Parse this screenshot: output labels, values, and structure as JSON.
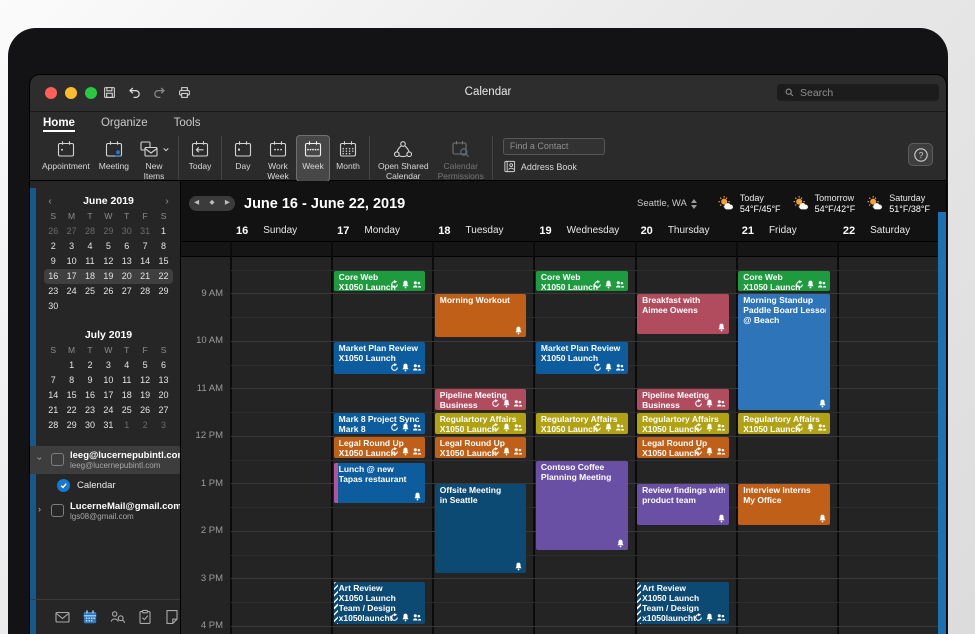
{
  "window": {
    "title": "Calendar",
    "search_placeholder": "Search",
    "traffic_lights": [
      {
        "name": "close",
        "color": "#ff5f57"
      },
      {
        "name": "minimize",
        "color": "#febc2e"
      },
      {
        "name": "zoom",
        "color": "#28c840"
      }
    ],
    "titlebar_icons": [
      "save",
      "undo",
      "redo",
      "print"
    ]
  },
  "ribbon": {
    "tabs": [
      {
        "label": "Home",
        "active": true
      },
      {
        "label": "Organize",
        "active": false
      },
      {
        "label": "Tools",
        "active": false
      }
    ],
    "groups": [
      {
        "items": [
          {
            "lines": [
              "Appointment"
            ],
            "icon": "appointment"
          },
          {
            "lines": [
              "Meeting"
            ],
            "icon": "meeting"
          },
          {
            "lines": [
              "New",
              "Items"
            ],
            "icon": "new-items",
            "chevron": true
          }
        ]
      },
      {
        "items": [
          {
            "lines": [
              "Today"
            ],
            "icon": "today"
          }
        ]
      },
      {
        "items": [
          {
            "lines": [
              "Day"
            ],
            "icon": "day"
          },
          {
            "lines": [
              "Work",
              "Week"
            ],
            "icon": "work-week"
          },
          {
            "lines": [
              "Week"
            ],
            "icon": "week",
            "selected": true
          },
          {
            "lines": [
              "Month"
            ],
            "icon": "month"
          }
        ]
      },
      {
        "items": [
          {
            "lines": [
              "Open Shared",
              "Calendar"
            ],
            "icon": "shared-calendar"
          },
          {
            "lines": [
              "Calendar",
              "Permissions"
            ],
            "icon": "permissions",
            "disabled": true
          }
        ]
      }
    ],
    "find_contact_placeholder": "Find a Contact",
    "address_book_label": "Address Book"
  },
  "sidebar": {
    "mini_calendars": [
      {
        "title": "June 2019",
        "arrows": true,
        "dow": [
          "S",
          "M",
          "T",
          "W",
          "T",
          "F",
          "S"
        ],
        "rows": [
          [
            "26",
            "27",
            "28",
            "29",
            "30",
            "31",
            "1"
          ],
          [
            "2",
            "3",
            "4",
            "5",
            "6",
            "7",
            "8"
          ],
          [
            "9",
            "10",
            "11",
            "12",
            "13",
            "14",
            "15"
          ],
          [
            "16",
            "17",
            "18",
            "19",
            "20",
            "21",
            "22"
          ],
          [
            "23",
            "24",
            "25",
            "26",
            "27",
            "28",
            "29"
          ],
          [
            "30",
            "",
            "",
            "",
            "",
            "",
            ""
          ]
        ],
        "muted": [
          "0-0",
          "0-1",
          "0-2",
          "0-3",
          "0-4",
          "0-5"
        ],
        "selected_row": 3
      },
      {
        "title": "July 2019",
        "arrows": false,
        "dow": [
          "S",
          "M",
          "T",
          "W",
          "T",
          "F",
          "S"
        ],
        "rows": [
          [
            "",
            "1",
            "2",
            "3",
            "4",
            "5",
            "6"
          ],
          [
            "7",
            "8",
            "9",
            "10",
            "11",
            "12",
            "13"
          ],
          [
            "14",
            "15",
            "16",
            "17",
            "18",
            "19",
            "20"
          ],
          [
            "21",
            "22",
            "23",
            "24",
            "25",
            "26",
            "27"
          ],
          [
            "28",
            "29",
            "30",
            "31",
            "1",
            "2",
            "3"
          ]
        ],
        "muted": [
          "4-4",
          "4-5",
          "4-6"
        ],
        "selected_row": -1
      }
    ],
    "accounts": [
      {
        "title": "leeg@lucernepubintl.com",
        "subtitle": "leeg@lucernepubintl.com",
        "expanded": true,
        "highlighted": true,
        "children": [
          {
            "label": "Calendar",
            "checked": true
          }
        ]
      },
      {
        "title": "LucerneMail@gmail.com",
        "subtitle": "lgs08@gmail.com",
        "expanded": false,
        "highlighted": false,
        "children": []
      }
    ],
    "nav_icons": [
      {
        "name": "mail",
        "active": false
      },
      {
        "name": "calendar",
        "active": true
      },
      {
        "name": "people",
        "active": false
      },
      {
        "name": "tasks",
        "active": false
      },
      {
        "name": "notes",
        "active": false
      }
    ]
  },
  "calendar": {
    "range_label": "June 16 - June 22, 2019",
    "location": "Seattle, WA",
    "weather": [
      {
        "label": "Today",
        "temps": "54°F/45°F"
      },
      {
        "label": "Tomorrow",
        "temps": "54°F/42°F"
      },
      {
        "label": "Saturday",
        "temps": "51°F/38°F"
      }
    ],
    "days": [
      {
        "num": "16",
        "name": "Sunday"
      },
      {
        "num": "17",
        "name": "Monday"
      },
      {
        "num": "18",
        "name": "Tuesday"
      },
      {
        "num": "19",
        "name": "Wednesday"
      },
      {
        "num": "20",
        "name": "Thursday"
      },
      {
        "num": "21",
        "name": "Friday"
      },
      {
        "num": "22",
        "name": "Saturday"
      }
    ],
    "time_labels": [
      "9 AM",
      "10 AM",
      "11 AM",
      "12 PM",
      "1 PM",
      "2 PM",
      "3 PM",
      "4 PM"
    ],
    "event_colors": {
      "green": "#1e9b3f",
      "blue": "#0d5c9e",
      "lightblue": "#2e74b9",
      "orange": "#c05f17",
      "rose": "#b04c5e",
      "olive": "#b0a213",
      "purple": "#6a50a5",
      "navy": "#0d4a73"
    },
    "events": [
      {
        "day": 1,
        "start": 8.5,
        "end": 9.0,
        "color": "green",
        "lines": [
          "Core Web",
          "X1050 Launch"
        ],
        "icons": [
          "recurrence",
          "bell",
          "attendees"
        ]
      },
      {
        "day": 1,
        "start": 10.0,
        "end": 10.75,
        "color": "blue",
        "lines": [
          "Market Plan Review",
          "X1050 Launch"
        ],
        "icons": [
          "recurrence",
          "bell",
          "attendees"
        ]
      },
      {
        "day": 1,
        "start": 11.5,
        "end": 12.0,
        "color": "blue",
        "lines": [
          "Mark 8 Project Sync",
          "Mark 8"
        ],
        "icons": [
          "recurrence",
          "bell",
          "attendees"
        ]
      },
      {
        "day": 1,
        "start": 12.0,
        "end": 12.5,
        "color": "orange",
        "lines": [
          "Legal Round Up",
          "X1050 Launch"
        ],
        "icons": [
          "recurrence",
          "bell",
          "attendees"
        ]
      },
      {
        "day": 1,
        "start": 12.55,
        "end": 13.45,
        "color": "blue",
        "stripe": "#b2539f",
        "lines": [
          "Lunch @ new",
          "Tapas restaurant"
        ],
        "icons": [
          "bell"
        ]
      },
      {
        "day": 1,
        "start": 15.05,
        "end": 16.0,
        "color": "navy",
        "stripe": "hatch",
        "lines": [
          "Art Review",
          "X1050 Launch",
          "Team / Design",
          "x1050launcht"
        ],
        "icons": [
          "recurrence",
          "bell",
          "attendees"
        ]
      },
      {
        "day": 2,
        "start": 9.0,
        "end": 9.97,
        "color": "orange",
        "lines": [
          "Morning Workout"
        ],
        "icons": [
          "bell"
        ]
      },
      {
        "day": 2,
        "start": 11.0,
        "end": 11.5,
        "color": "rose",
        "lines": [
          "Pipeline Meeting",
          "Business"
        ],
        "icons": [
          "recurrence",
          "bell",
          "attendees"
        ]
      },
      {
        "day": 2,
        "start": 11.5,
        "end": 12.0,
        "color": "olive",
        "lines": [
          "Regulartory Affairs",
          "X1050 Launch"
        ],
        "icons": [
          "recurrence",
          "bell",
          "attendees"
        ]
      },
      {
        "day": 2,
        "start": 12.0,
        "end": 12.5,
        "color": "orange",
        "lines": [
          "Legal Round Up",
          "X1050 Launch"
        ],
        "icons": [
          "recurrence",
          "bell",
          "attendees"
        ]
      },
      {
        "day": 2,
        "start": 13.0,
        "end": 14.93,
        "color": "navy",
        "lines": [
          "Offsite Meeting",
          "in Seattle"
        ],
        "icons": [
          "bell"
        ]
      },
      {
        "day": 3,
        "start": 8.5,
        "end": 9.0,
        "color": "green",
        "lines": [
          "Core Web",
          "X1050 Launch"
        ],
        "icons": [
          "recurrence",
          "bell",
          "attendees"
        ]
      },
      {
        "day": 3,
        "start": 10.0,
        "end": 10.75,
        "color": "blue",
        "lines": [
          "Market Plan Review",
          "X1050 Launch"
        ],
        "icons": [
          "recurrence",
          "bell",
          "attendees"
        ]
      },
      {
        "day": 3,
        "start": 11.5,
        "end": 12.0,
        "color": "olive",
        "lines": [
          "Regulartory Affairs",
          "X1050 Launch"
        ],
        "icons": [
          "recurrence",
          "bell",
          "attendees"
        ]
      },
      {
        "day": 3,
        "start": 12.5,
        "end": 14.45,
        "color": "purple",
        "lines": [
          "Contoso Coffee",
          "Planning Meeting"
        ],
        "icons": [
          "bell"
        ]
      },
      {
        "day": 4,
        "start": 9.0,
        "end": 9.9,
        "color": "rose",
        "lines": [
          "Breakfast with",
          "Aimee Owens"
        ],
        "icons": [
          "bell"
        ]
      },
      {
        "day": 4,
        "start": 11.0,
        "end": 11.5,
        "color": "rose",
        "lines": [
          "Pipeline Meeting",
          "Business"
        ],
        "icons": [
          "recurrence",
          "bell",
          "attendees"
        ]
      },
      {
        "day": 4,
        "start": 11.5,
        "end": 12.0,
        "color": "olive",
        "lines": [
          "Regulartory Affairs",
          "X1050 Launch"
        ],
        "icons": [
          "recurrence",
          "bell",
          "attendees"
        ]
      },
      {
        "day": 4,
        "start": 12.0,
        "end": 12.5,
        "color": "orange",
        "lines": [
          "Legal Round Up",
          "X1050 Launch"
        ],
        "icons": [
          "recurrence",
          "bell",
          "attendees"
        ]
      },
      {
        "day": 4,
        "start": 13.0,
        "end": 13.92,
        "color": "purple",
        "lines": [
          "Review findings with",
          "product team"
        ],
        "icons": [
          "bell"
        ]
      },
      {
        "day": 4,
        "start": 15.05,
        "end": 16.0,
        "color": "navy",
        "stripe": "hatch",
        "lines": [
          "Art Review",
          "X1050 Launch",
          "Team / Design",
          "x1050launcht"
        ],
        "icons": [
          "recurrence",
          "bell",
          "attendees"
        ]
      },
      {
        "day": 5,
        "start": 8.5,
        "end": 9.0,
        "color": "green",
        "lines": [
          "Core Web",
          "X1050 Launch"
        ],
        "icons": [
          "recurrence",
          "bell",
          "attendees"
        ]
      },
      {
        "day": 5,
        "start": 9.0,
        "end": 11.5,
        "color": "lightblue",
        "lines": [
          "Morning Standup",
          "Paddle Board Lesson",
          "@ Beach"
        ],
        "icons": [
          "bell"
        ]
      },
      {
        "day": 5,
        "start": 11.5,
        "end": 12.0,
        "color": "olive",
        "lines": [
          "Regulartory Affairs",
          "X1050 Launch"
        ],
        "icons": [
          "recurrence",
          "bell",
          "attendees"
        ]
      },
      {
        "day": 5,
        "start": 13.0,
        "end": 13.92,
        "color": "orange",
        "lines": [
          "Interview Interns",
          "My Office"
        ],
        "icons": [
          "bell"
        ]
      }
    ]
  }
}
